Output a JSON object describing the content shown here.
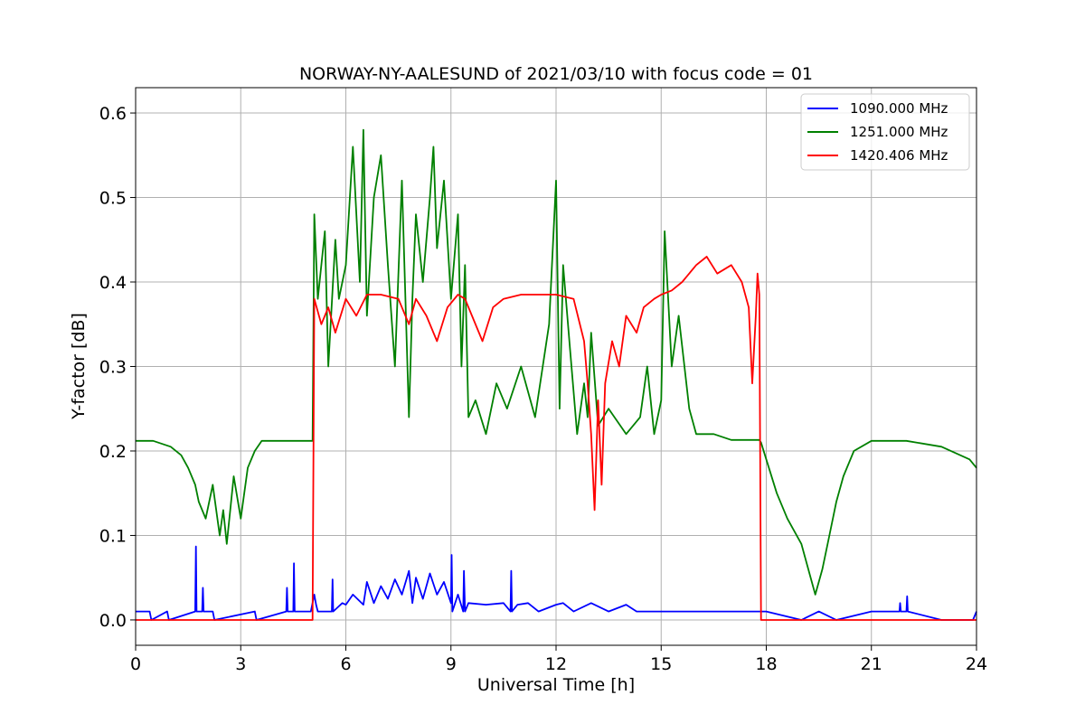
{
  "chart_data": {
    "type": "line",
    "title": "NORWAY-NY-AALESUND of 2021/03/10 with focus code = 01",
    "xlabel": "Universal Time [h]",
    "ylabel": "Y-factor [dB]",
    "xlim": [
      0,
      24
    ],
    "ylim": [
      -0.03,
      0.63
    ],
    "xticks": [
      0,
      3,
      6,
      9,
      12,
      15,
      18,
      21,
      24
    ],
    "xtick_labels": [
      "0",
      "3",
      "6",
      "9",
      "12",
      "15",
      "18",
      "21",
      "24"
    ],
    "yticks": [
      0.0,
      0.1,
      0.2,
      0.3,
      0.4,
      0.5,
      0.6
    ],
    "ytick_labels": [
      "0.0",
      "0.1",
      "0.2",
      "0.3",
      "0.4",
      "0.5",
      "0.6"
    ],
    "grid": true,
    "legend_position": "top-right",
    "series": [
      {
        "name": "1090.000 MHz",
        "color": "#0000ff",
        "x": [
          0,
          0.4,
          0.45,
          0.9,
          0.95,
          1.7,
          1.72,
          1.74,
          1.9,
          1.92,
          1.94,
          2.2,
          2.25,
          3.4,
          3.45,
          4.3,
          4.32,
          4.34,
          4.5,
          4.52,
          4.54,
          5.0,
          5.1,
          5.15,
          5.2,
          5.6,
          5.62,
          5.64,
          5.9,
          6.0,
          6.2,
          6.5,
          6.6,
          6.8,
          7.0,
          7.2,
          7.4,
          7.6,
          7.8,
          7.9,
          8.0,
          8.2,
          8.4,
          8.6,
          8.8,
          9.0,
          9.02,
          9.04,
          9.2,
          9.35,
          9.37,
          9.4,
          9.5,
          10.0,
          10.5,
          10.7,
          10.72,
          10.74,
          10.9,
          11.2,
          11.5,
          12.0,
          12.2,
          12.5,
          13.0,
          13.5,
          14.0,
          14.3,
          14.5,
          17.5,
          18.0,
          19.0,
          19.5,
          20.0,
          21.0,
          21.8,
          21.82,
          21.84,
          22.0,
          22.02,
          22.04,
          23.0,
          23.9,
          24
        ],
        "y": [
          0.01,
          0.01,
          0.0,
          0.01,
          0.0,
          0.01,
          0.087,
          0.01,
          0.01,
          0.038,
          0.01,
          0.01,
          0.0,
          0.01,
          0.0,
          0.01,
          0.038,
          0.01,
          0.01,
          0.067,
          0.01,
          0.01,
          0.03,
          0.018,
          0.01,
          0.01,
          0.048,
          0.01,
          0.02,
          0.018,
          0.03,
          0.018,
          0.045,
          0.02,
          0.04,
          0.025,
          0.048,
          0.03,
          0.058,
          0.02,
          0.05,
          0.025,
          0.055,
          0.03,
          0.045,
          0.02,
          0.077,
          0.01,
          0.03,
          0.01,
          0.058,
          0.01,
          0.02,
          0.018,
          0.02,
          0.01,
          0.058,
          0.01,
          0.018,
          0.02,
          0.01,
          0.018,
          0.02,
          0.01,
          0.02,
          0.01,
          0.018,
          0.01,
          0.01,
          0.01,
          0.01,
          0.0,
          0.01,
          0.0,
          0.01,
          0.01,
          0.02,
          0.01,
          0.01,
          0.028,
          0.01,
          0.0,
          0.0,
          0.01
        ]
      },
      {
        "name": "1251.000 MHz",
        "color": "#008000",
        "x": [
          0,
          0.5,
          1.0,
          1.3,
          1.5,
          1.7,
          1.8,
          2.0,
          2.2,
          2.4,
          2.5,
          2.6,
          2.8,
          3.0,
          3.2,
          3.4,
          3.6,
          4.0,
          4.5,
          5.05,
          5.1,
          5.2,
          5.4,
          5.5,
          5.7,
          5.8,
          6.0,
          6.2,
          6.4,
          6.5,
          6.6,
          6.8,
          7.0,
          7.2,
          7.4,
          7.6,
          7.8,
          7.9,
          8.0,
          8.2,
          8.4,
          8.5,
          8.6,
          8.8,
          9.0,
          9.2,
          9.3,
          9.4,
          9.5,
          9.7,
          10.0,
          10.3,
          10.6,
          11.0,
          11.4,
          11.8,
          12.0,
          12.1,
          12.2,
          12.4,
          12.6,
          12.8,
          12.9,
          13.0,
          13.2,
          13.5,
          14.0,
          14.4,
          14.6,
          14.8,
          15.0,
          15.1,
          15.3,
          15.5,
          15.8,
          16.0,
          16.5,
          17.0,
          17.5,
          17.8,
          17.85,
          18.0,
          18.3,
          18.6,
          19.0,
          19.2,
          19.4,
          19.6,
          19.8,
          20.0,
          20.2,
          20.5,
          21.0,
          22.0,
          23.0,
          23.8,
          24
        ],
        "y": [
          0.212,
          0.212,
          0.205,
          0.195,
          0.18,
          0.16,
          0.14,
          0.12,
          0.16,
          0.1,
          0.13,
          0.09,
          0.17,
          0.12,
          0.18,
          0.2,
          0.212,
          0.212,
          0.212,
          0.212,
          0.48,
          0.38,
          0.46,
          0.3,
          0.45,
          0.38,
          0.42,
          0.56,
          0.4,
          0.58,
          0.36,
          0.5,
          0.55,
          0.42,
          0.3,
          0.52,
          0.24,
          0.38,
          0.48,
          0.4,
          0.5,
          0.56,
          0.44,
          0.52,
          0.38,
          0.48,
          0.3,
          0.42,
          0.24,
          0.26,
          0.22,
          0.28,
          0.25,
          0.3,
          0.24,
          0.35,
          0.52,
          0.25,
          0.42,
          0.32,
          0.22,
          0.28,
          0.24,
          0.34,
          0.23,
          0.25,
          0.22,
          0.24,
          0.3,
          0.22,
          0.26,
          0.46,
          0.3,
          0.36,
          0.25,
          0.22,
          0.22,
          0.213,
          0.213,
          0.213,
          0.21,
          0.19,
          0.15,
          0.12,
          0.09,
          0.06,
          0.03,
          0.06,
          0.1,
          0.14,
          0.17,
          0.2,
          0.212,
          0.212,
          0.205,
          0.19,
          0.18
        ]
      },
      {
        "name": "1420.406 MHz",
        "color": "#ff0000",
        "x": [
          0,
          5.0,
          5.05,
          5.1,
          5.3,
          5.5,
          5.7,
          6.0,
          6.3,
          6.6,
          7.0,
          7.5,
          7.8,
          8.0,
          8.3,
          8.6,
          8.9,
          9.2,
          9.4,
          9.6,
          9.9,
          10.2,
          10.5,
          11.0,
          11.5,
          12.0,
          12.5,
          12.8,
          12.9,
          13.0,
          13.1,
          13.2,
          13.3,
          13.4,
          13.6,
          13.8,
          14.0,
          14.3,
          14.5,
          14.8,
          15.0,
          15.3,
          15.6,
          16.0,
          16.3,
          16.6,
          17.0,
          17.3,
          17.5,
          17.6,
          17.7,
          17.75,
          17.8,
          17.85,
          24
        ],
        "y": [
          0.0,
          0.0,
          0.0,
          0.38,
          0.35,
          0.37,
          0.34,
          0.38,
          0.36,
          0.385,
          0.385,
          0.38,
          0.35,
          0.38,
          0.36,
          0.33,
          0.37,
          0.385,
          0.38,
          0.36,
          0.33,
          0.37,
          0.38,
          0.385,
          0.385,
          0.385,
          0.38,
          0.33,
          0.28,
          0.22,
          0.13,
          0.26,
          0.16,
          0.28,
          0.33,
          0.3,
          0.36,
          0.34,
          0.37,
          0.38,
          0.385,
          0.39,
          0.4,
          0.42,
          0.43,
          0.41,
          0.42,
          0.4,
          0.37,
          0.28,
          0.36,
          0.41,
          0.385,
          0.0,
          0.0
        ]
      }
    ]
  }
}
